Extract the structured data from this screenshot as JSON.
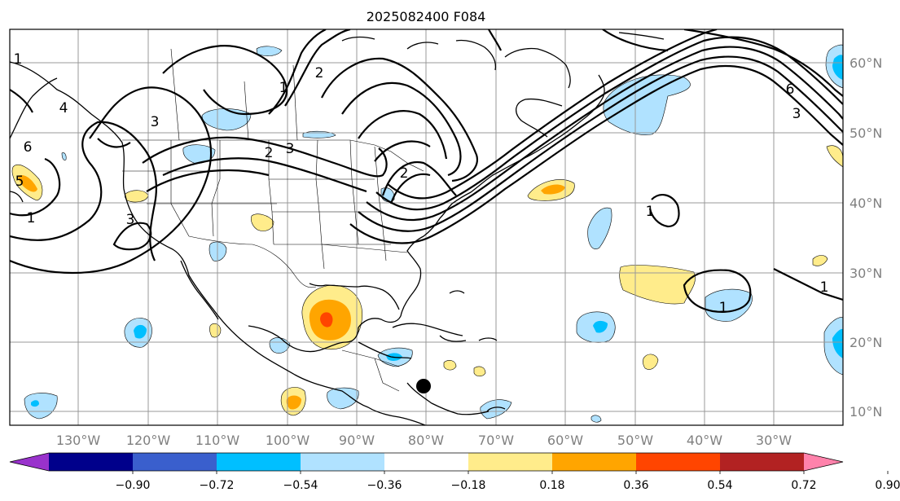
{
  "title": "2025082400 F084",
  "lon_labels": [
    "130°W",
    "120°W",
    "110°W",
    "100°W",
    "90°W",
    "80°W",
    "70°W",
    "60°W",
    "50°W",
    "40°W",
    "30°W"
  ],
  "lat_labels": [
    "60°N",
    "50°N",
    "40°N",
    "30°N",
    "20°N",
    "10°N"
  ],
  "colorbar": {
    "colors": [
      "#9932cc",
      "#00008b",
      "#3a5fcd",
      "#00bfff",
      "#b0e2ff",
      "#ffffff",
      "#ffec8b",
      "#ffa500",
      "#ff4500",
      "#b22222",
      "#ff82ab"
    ],
    "tick_labels": [
      "−0.90",
      "−0.72",
      "−0.54",
      "−0.36",
      "−0.18",
      "0.18",
      "0.36",
      "0.54",
      "0.72",
      "0.90"
    ]
  },
  "contour_labels": [
    "1",
    "2",
    "3",
    "4",
    "5",
    "6"
  ],
  "marker": {
    "label": "storm-position-marker"
  }
}
